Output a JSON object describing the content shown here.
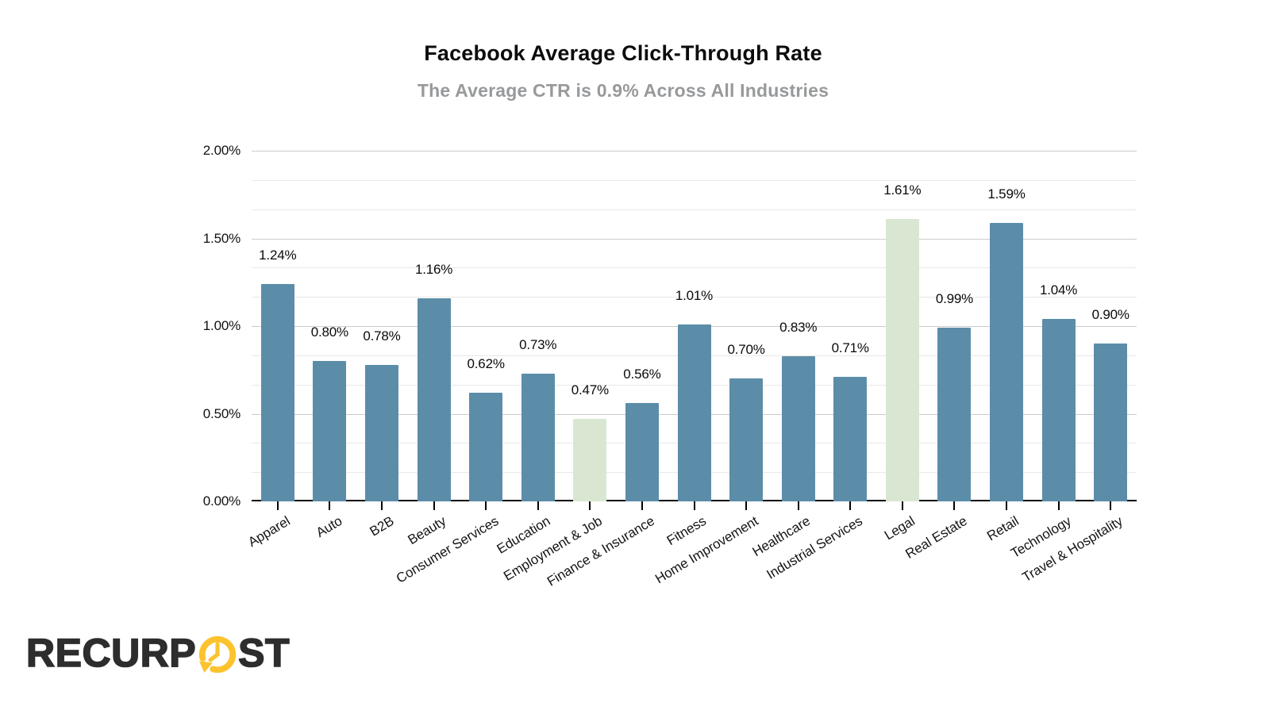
{
  "header": {
    "title": "Facebook Average Click-Through Rate",
    "subtitle": "The Average CTR is 0.9% Across All Industries"
  },
  "chart_data": {
    "type": "bar",
    "title": "Facebook Average Click-Through Rate",
    "subtitle": "The Average CTR is 0.9% Across All Industries",
    "categories": [
      "Apparel",
      "Auto",
      "B2B",
      "Beauty",
      "Consumer Services",
      "Education",
      "Employment & Job",
      "Finance & Insurance",
      "Fitness",
      "Home Improvement",
      "Healthcare",
      "Industrial Services",
      "Legal",
      "Real Estate",
      "Retail",
      "Technology",
      "Travel & Hospitality"
    ],
    "values": [
      1.24,
      0.8,
      0.78,
      1.16,
      0.62,
      0.73,
      0.47,
      0.56,
      1.01,
      0.7,
      0.83,
      0.71,
      1.61,
      0.99,
      1.59,
      1.04,
      0.9
    ],
    "value_labels": [
      "1.24%",
      "0.80%",
      "0.78%",
      "1.16%",
      "0.62%",
      "0.73%",
      "0.47%",
      "0.56%",
      "1.01%",
      "0.70%",
      "0.83%",
      "0.71%",
      "1.61%",
      "0.99%",
      "1.59%",
      "1.04%",
      "0.90%"
    ],
    "highlighted_categories": [
      "Employment & Job",
      "Legal"
    ],
    "xlabel": "",
    "ylabel": "",
    "ylim": [
      0,
      2
    ],
    "y_axis_ticks": [
      "2.00%",
      "1.50%",
      "1.00%",
      "0.50%",
      "0.00%"
    ],
    "y_major_step": 0.5,
    "y_minor_divisions_per_major": 3,
    "grid": true,
    "legend_position": "none",
    "colors": {
      "bar": "#5b8da9",
      "highlight": "#d9e7d2",
      "gridline_major": "#cccccc",
      "gridline_minor": "#e8e8e8",
      "axis": "#000000",
      "title": "#0c0c0c",
      "subtitle": "#97999b"
    }
  },
  "footer": {
    "logo": {
      "brand": "RecurPost",
      "wordmark_left": "RECURP",
      "wordmark_right": "ST",
      "icon": "clock-refresh-icon",
      "text_color": "#2d2d2d",
      "accent_color": "#fcc32f"
    }
  }
}
